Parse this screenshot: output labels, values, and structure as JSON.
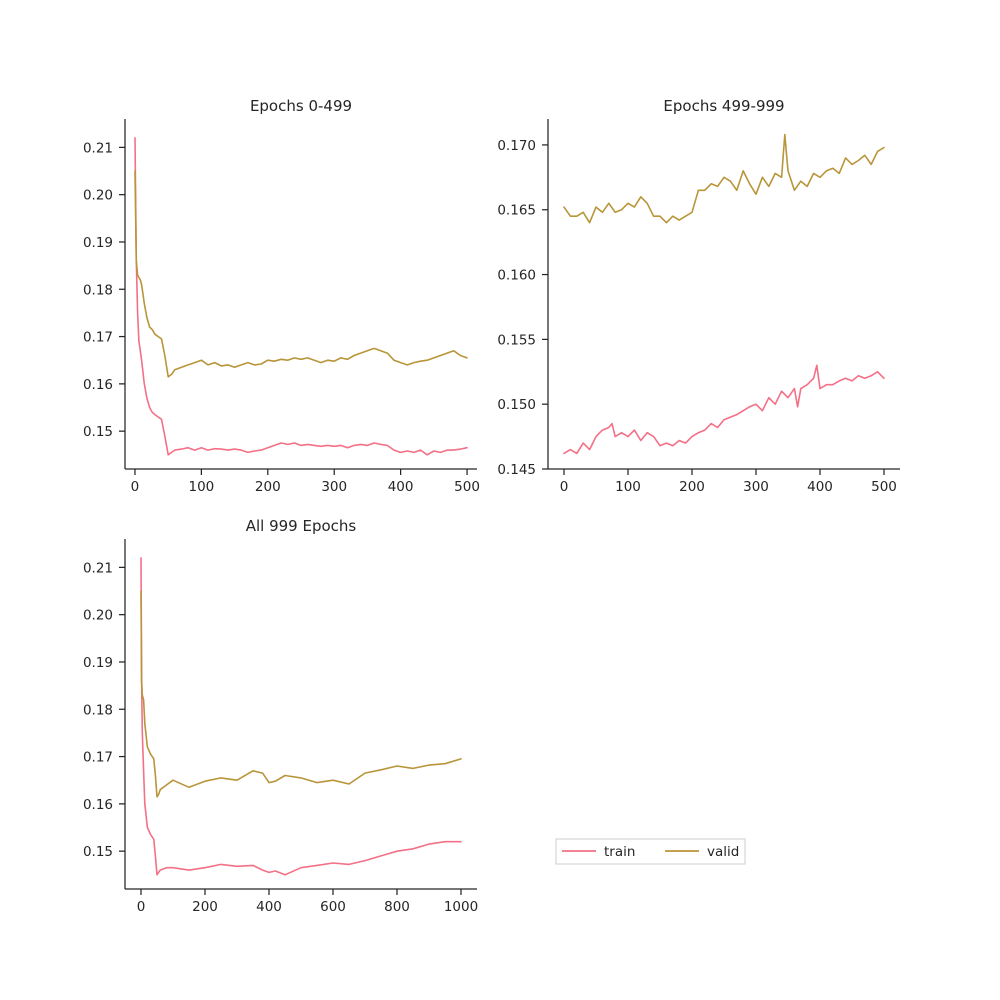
{
  "chart_data": [
    {
      "type": "line",
      "title": "Epochs 0-499",
      "xlim": [
        -15,
        515
      ],
      "ylim": [
        0.142,
        0.216
      ],
      "xticks": [
        0,
        100,
        200,
        300,
        400,
        500
      ],
      "yticks": [
        0.15,
        0.16,
        0.17,
        0.18,
        0.19,
        0.2,
        0.21
      ],
      "ytick_labels": [
        "0.15",
        "0.16",
        "0.17",
        "0.18",
        "0.19",
        "0.20",
        "0.21"
      ],
      "series": [
        {
          "name": "train",
          "color": "#f37086",
          "x": [
            0,
            2,
            4,
            6,
            8,
            10,
            14,
            18,
            22,
            26,
            30,
            35,
            40,
            45,
            50,
            55,
            60,
            70,
            80,
            90,
            100,
            110,
            120,
            130,
            140,
            150,
            160,
            170,
            180,
            190,
            200,
            210,
            220,
            230,
            240,
            250,
            260,
            270,
            280,
            290,
            300,
            310,
            320,
            330,
            340,
            350,
            360,
            370,
            380,
            390,
            400,
            410,
            420,
            430,
            440,
            450,
            460,
            470,
            480,
            490,
            500
          ],
          "values": [
            0.212,
            0.186,
            0.175,
            0.169,
            0.167,
            0.165,
            0.16,
            0.157,
            0.155,
            0.154,
            0.1535,
            0.153,
            0.1525,
            0.149,
            0.145,
            0.1455,
            0.146,
            0.1462,
            0.1465,
            0.146,
            0.1465,
            0.146,
            0.1463,
            0.1462,
            0.146,
            0.1462,
            0.146,
            0.1455,
            0.1458,
            0.146,
            0.1465,
            0.147,
            0.1475,
            0.1472,
            0.1475,
            0.147,
            0.1472,
            0.147,
            0.1468,
            0.147,
            0.1468,
            0.147,
            0.1465,
            0.147,
            0.1472,
            0.147,
            0.1475,
            0.1472,
            0.147,
            0.146,
            0.1455,
            0.1458,
            0.1455,
            0.146,
            0.145,
            0.1458,
            0.1455,
            0.146,
            0.146,
            0.1462,
            0.1465
          ]
        },
        {
          "name": "valid",
          "color": "#b9953a",
          "x": [
            0,
            2,
            4,
            6,
            8,
            10,
            14,
            18,
            22,
            26,
            30,
            35,
            40,
            45,
            50,
            55,
            60,
            70,
            80,
            90,
            100,
            110,
            120,
            130,
            140,
            150,
            160,
            170,
            180,
            190,
            200,
            210,
            220,
            230,
            240,
            250,
            260,
            270,
            280,
            290,
            300,
            310,
            320,
            330,
            340,
            350,
            360,
            370,
            380,
            390,
            400,
            410,
            420,
            430,
            440,
            450,
            460,
            470,
            480,
            490,
            500
          ],
          "values": [
            0.205,
            0.186,
            0.183,
            0.1825,
            0.182,
            0.181,
            0.177,
            0.174,
            0.172,
            0.1715,
            0.1705,
            0.17,
            0.1695,
            0.166,
            0.1615,
            0.162,
            0.163,
            0.1635,
            0.164,
            0.1645,
            0.165,
            0.164,
            0.1645,
            0.1638,
            0.164,
            0.1635,
            0.164,
            0.1645,
            0.164,
            0.1642,
            0.165,
            0.1648,
            0.1652,
            0.165,
            0.1655,
            0.1652,
            0.1655,
            0.165,
            0.1645,
            0.165,
            0.1648,
            0.1655,
            0.1652,
            0.166,
            0.1665,
            0.167,
            0.1675,
            0.167,
            0.1665,
            0.165,
            0.1645,
            0.164,
            0.1645,
            0.1648,
            0.165,
            0.1655,
            0.166,
            0.1665,
            0.167,
            0.166,
            0.1655
          ]
        }
      ]
    },
    {
      "type": "line",
      "title": "Epochs 499-999",
      "xlim": [
        -25,
        525
      ],
      "ylim": [
        0.145,
        0.172
      ],
      "xticks": [
        0,
        100,
        200,
        300,
        400,
        500
      ],
      "yticks": [
        0.145,
        0.15,
        0.155,
        0.16,
        0.165,
        0.17
      ],
      "ytick_labels": [
        "0.145",
        "0.150",
        "0.155",
        "0.160",
        "0.165",
        "0.170"
      ],
      "series": [
        {
          "name": "train",
          "color": "#f37086",
          "x": [
            0,
            10,
            20,
            30,
            40,
            50,
            60,
            70,
            75,
            80,
            90,
            100,
            110,
            120,
            130,
            140,
            150,
            160,
            170,
            180,
            190,
            200,
            210,
            220,
            230,
            240,
            250,
            260,
            270,
            280,
            290,
            300,
            310,
            320,
            330,
            340,
            350,
            360,
            365,
            370,
            380,
            390,
            395,
            400,
            410,
            420,
            430,
            440,
            450,
            460,
            470,
            480,
            490,
            500
          ],
          "values": [
            0.1462,
            0.1465,
            0.1462,
            0.147,
            0.1465,
            0.1475,
            0.148,
            0.1482,
            0.1485,
            0.1475,
            0.1478,
            0.1475,
            0.148,
            0.1472,
            0.1478,
            0.1475,
            0.1468,
            0.147,
            0.1468,
            0.1472,
            0.147,
            0.1475,
            0.1478,
            0.148,
            0.1485,
            0.1482,
            0.1488,
            0.149,
            0.1492,
            0.1495,
            0.1498,
            0.15,
            0.1495,
            0.1505,
            0.15,
            0.151,
            0.1505,
            0.1512,
            0.1498,
            0.1512,
            0.1515,
            0.152,
            0.153,
            0.1512,
            0.1515,
            0.1515,
            0.1518,
            0.152,
            0.1518,
            0.1522,
            0.152,
            0.1522,
            0.1525,
            0.152
          ]
        },
        {
          "name": "valid",
          "color": "#b9953a",
          "x": [
            0,
            10,
            20,
            30,
            40,
            50,
            60,
            70,
            80,
            90,
            100,
            110,
            120,
            130,
            140,
            150,
            160,
            170,
            180,
            190,
            200,
            210,
            220,
            230,
            240,
            250,
            260,
            270,
            280,
            290,
            300,
            310,
            320,
            330,
            340,
            345,
            350,
            360,
            370,
            380,
            390,
            400,
            410,
            420,
            430,
            440,
            450,
            460,
            470,
            480,
            490,
            500
          ],
          "values": [
            0.1652,
            0.1645,
            0.1645,
            0.1648,
            0.164,
            0.1652,
            0.1648,
            0.1655,
            0.1648,
            0.165,
            0.1655,
            0.1652,
            0.166,
            0.1655,
            0.1645,
            0.1645,
            0.164,
            0.1645,
            0.1642,
            0.1645,
            0.1648,
            0.1665,
            0.1665,
            0.167,
            0.1668,
            0.1675,
            0.1672,
            0.1665,
            0.168,
            0.167,
            0.1662,
            0.1675,
            0.1668,
            0.1678,
            0.1675,
            0.1708,
            0.168,
            0.1665,
            0.1672,
            0.1668,
            0.1678,
            0.1675,
            0.168,
            0.1682,
            0.1678,
            0.169,
            0.1685,
            0.1688,
            0.1692,
            0.1685,
            0.1695,
            0.1698
          ]
        }
      ]
    },
    {
      "type": "line",
      "title": "All 999 Epochs",
      "xlim": [
        -50,
        1050
      ],
      "ylim": [
        0.142,
        0.216
      ],
      "xticks": [
        0,
        200,
        400,
        600,
        800,
        1000
      ],
      "yticks": [
        0.15,
        0.16,
        0.17,
        0.18,
        0.19,
        0.2,
        0.21
      ],
      "ytick_labels": [
        "0.15",
        "0.16",
        "0.17",
        "0.18",
        "0.19",
        "0.20",
        "0.21"
      ],
      "series": [
        {
          "name": "train",
          "color": "#f37086",
          "x": [
            0,
            2,
            4,
            8,
            12,
            20,
            30,
            40,
            45,
            50,
            55,
            60,
            80,
            100,
            150,
            200,
            250,
            300,
            350,
            380,
            400,
            420,
            450,
            500,
            550,
            600,
            650,
            700,
            750,
            800,
            850,
            900,
            950,
            1000
          ],
          "values": [
            0.212,
            0.186,
            0.175,
            0.167,
            0.16,
            0.155,
            0.1535,
            0.1525,
            0.149,
            0.145,
            0.1455,
            0.146,
            0.1465,
            0.1465,
            0.146,
            0.1465,
            0.1472,
            0.1468,
            0.147,
            0.146,
            0.1455,
            0.1458,
            0.145,
            0.1465,
            0.147,
            0.1475,
            0.1472,
            0.148,
            0.149,
            0.15,
            0.1505,
            0.1515,
            0.152,
            0.152
          ]
        },
        {
          "name": "valid",
          "color": "#b9953a",
          "x": [
            0,
            2,
            4,
            8,
            12,
            20,
            30,
            40,
            45,
            50,
            55,
            60,
            80,
            100,
            150,
            200,
            250,
            300,
            350,
            380,
            400,
            420,
            450,
            500,
            550,
            600,
            650,
            700,
            750,
            800,
            850,
            900,
            950,
            1000
          ],
          "values": [
            0.205,
            0.186,
            0.183,
            0.182,
            0.177,
            0.172,
            0.1705,
            0.1695,
            0.166,
            0.1615,
            0.162,
            0.163,
            0.164,
            0.165,
            0.1635,
            0.1648,
            0.1655,
            0.165,
            0.167,
            0.1665,
            0.1645,
            0.1648,
            0.166,
            0.1655,
            0.1645,
            0.165,
            0.1642,
            0.1665,
            0.1672,
            0.168,
            0.1675,
            0.1682,
            0.1685,
            0.1695
          ]
        }
      ]
    }
  ],
  "legend": {
    "placement": "lower-right",
    "entries": [
      {
        "name": "train",
        "color": "#f37086"
      },
      {
        "name": "valid",
        "color": "#b9953a"
      }
    ]
  }
}
